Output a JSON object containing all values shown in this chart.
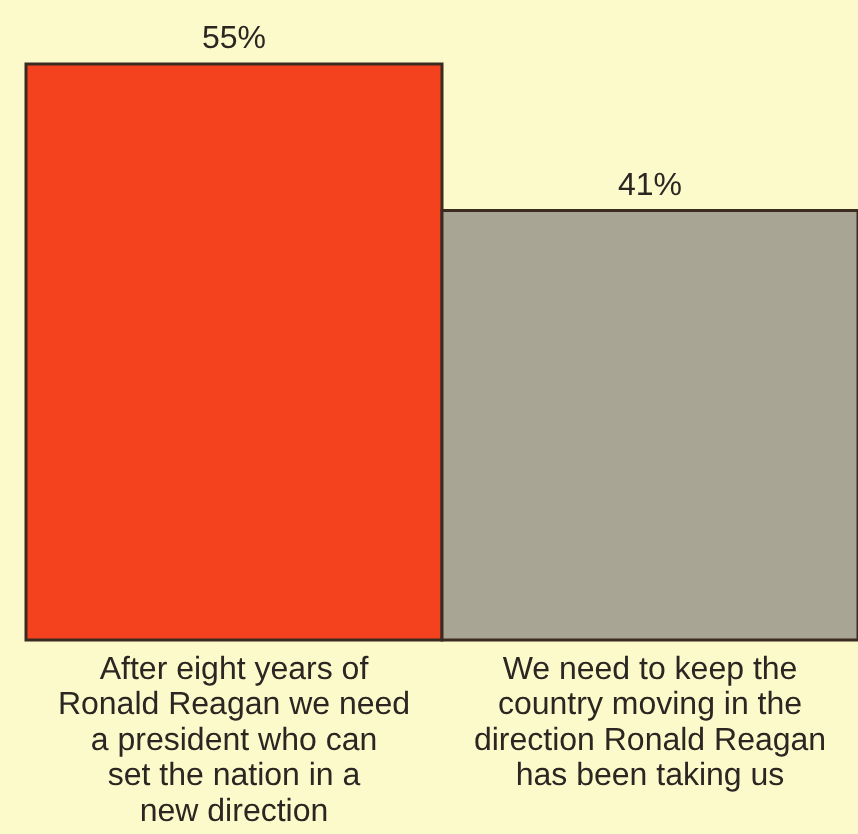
{
  "chart_data": {
    "type": "bar",
    "categories": [
      "After eight years of\nRonald Reagan we need\na president who can\nset the nation in a\nnew direction",
      "We need to keep the\ncountry moving in the\ndirection Ronald Reagan\nhas been taking us"
    ],
    "values": [
      55,
      41
    ],
    "value_labels": [
      "55%",
      "41%"
    ],
    "colors": [
      "#f4421f",
      "#a9a595"
    ]
  }
}
